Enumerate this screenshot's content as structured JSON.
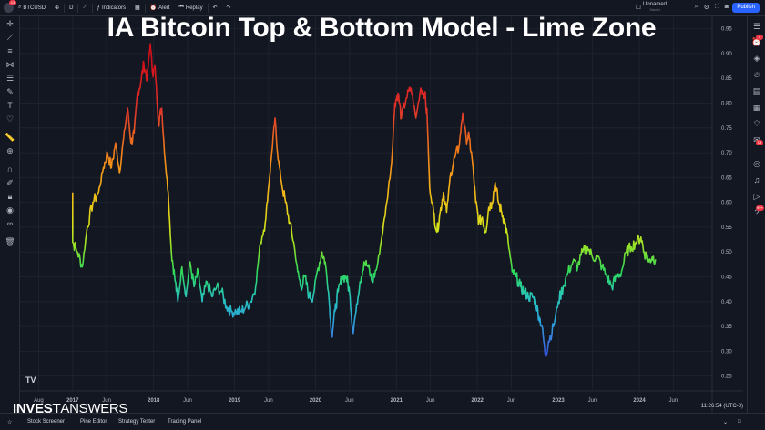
{
  "topbar": {
    "avatar_badge": "13",
    "symbol": "BTCUSD",
    "interval": "D",
    "indicators_label": "Indicators",
    "alert_label": "Alert",
    "replay_label": "Replay",
    "layout_name": "Unnamed",
    "layout_sub": "Saved",
    "publish_label": "Publish"
  },
  "right_toolbar": {
    "badge_1": "4",
    "badge_2": "13",
    "badge_3": "99+"
  },
  "title": "IA Bitcoin Top & Bottom Model - Lime Zone",
  "brand": {
    "bold": "INVEST",
    "light": "ANSWERS"
  },
  "clock": "11:26:54 (UTC-8)",
  "tv_logo": "TV",
  "bottom_tabs": [
    "Stock Screener",
    "Pine Editor",
    "Strategy Tester",
    "Trading Panel"
  ],
  "colors": {
    "background": "#131722",
    "grid": "#1e222d",
    "accent": "#2962ff",
    "badge": "#f23645"
  },
  "chart_data": {
    "type": "line",
    "x_ticks": [
      {
        "label": "Aug",
        "x": 2016.58
      },
      {
        "label": "2017",
        "x": 2017.0
      },
      {
        "label": "Jun",
        "x": 2017.42
      },
      {
        "label": "2018",
        "x": 2018.0
      },
      {
        "label": "Jun",
        "x": 2018.42
      },
      {
        "label": "2019",
        "x": 2019.0
      },
      {
        "label": "Jun",
        "x": 2019.42
      },
      {
        "label": "2020",
        "x": 2020.0
      },
      {
        "label": "Jun",
        "x": 2020.42
      },
      {
        "label": "2021",
        "x": 2021.0
      },
      {
        "label": "Jun",
        "x": 2021.42
      },
      {
        "label": "2022",
        "x": 2022.0
      },
      {
        "label": "Jun",
        "x": 2022.42
      },
      {
        "label": "2023",
        "x": 2023.0
      },
      {
        "label": "Jun",
        "x": 2023.42
      },
      {
        "label": "2024",
        "x": 2024.0
      },
      {
        "label": "Jun",
        "x": 2024.42
      }
    ],
    "y_ticks": [
      "0.95",
      "0.90",
      "0.85",
      "0.80",
      "0.75",
      "0.70",
      "0.65",
      "0.60",
      "0.55",
      "0.50",
      "0.45",
      "0.40",
      "0.35",
      "0.30",
      "0.25"
    ],
    "xlim": [
      2016.35,
      2024.9
    ],
    "ylim": [
      0.22,
      0.975
    ],
    "series": [
      {
        "points": [
          [
            2017.0,
            0.62
          ],
          [
            2017.0,
            0.52
          ],
          [
            2017.06,
            0.5
          ],
          [
            2017.12,
            0.47
          ],
          [
            2017.18,
            0.55
          ],
          [
            2017.25,
            0.6
          ],
          [
            2017.32,
            0.62
          ],
          [
            2017.38,
            0.67
          ],
          [
            2017.43,
            0.7
          ],
          [
            2017.48,
            0.67
          ],
          [
            2017.53,
            0.72
          ],
          [
            2017.58,
            0.66
          ],
          [
            2017.63,
            0.73
          ],
          [
            2017.68,
            0.79
          ],
          [
            2017.72,
            0.72
          ],
          [
            2017.76,
            0.74
          ],
          [
            2017.8,
            0.82
          ],
          [
            2017.84,
            0.84
          ],
          [
            2017.88,
            0.88
          ],
          [
            2017.92,
            0.85
          ],
          [
            2017.96,
            0.92
          ],
          [
            2017.99,
            0.86
          ],
          [
            2018.02,
            0.87
          ],
          [
            2018.06,
            0.76
          ],
          [
            2018.1,
            0.79
          ],
          [
            2018.14,
            0.69
          ],
          [
            2018.18,
            0.62
          ],
          [
            2018.22,
            0.5
          ],
          [
            2018.26,
            0.45
          ],
          [
            2018.3,
            0.4
          ],
          [
            2018.35,
            0.47
          ],
          [
            2018.4,
            0.41
          ],
          [
            2018.45,
            0.48
          ],
          [
            2018.5,
            0.43
          ],
          [
            2018.55,
            0.46
          ],
          [
            2018.6,
            0.4
          ],
          [
            2018.66,
            0.44
          ],
          [
            2018.72,
            0.41
          ],
          [
            2018.78,
            0.43
          ],
          [
            2018.84,
            0.42
          ],
          [
            2018.9,
            0.39
          ],
          [
            2018.96,
            0.38
          ],
          [
            2019.02,
            0.38
          ],
          [
            2019.08,
            0.38
          ],
          [
            2019.14,
            0.39
          ],
          [
            2019.2,
            0.4
          ],
          [
            2019.26,
            0.43
          ],
          [
            2019.32,
            0.52
          ],
          [
            2019.38,
            0.56
          ],
          [
            2019.42,
            0.63
          ],
          [
            2019.46,
            0.7
          ],
          [
            2019.5,
            0.77
          ],
          [
            2019.53,
            0.7
          ],
          [
            2019.58,
            0.64
          ],
          [
            2019.63,
            0.6
          ],
          [
            2019.68,
            0.56
          ],
          [
            2019.73,
            0.52
          ],
          [
            2019.78,
            0.46
          ],
          [
            2019.82,
            0.43
          ],
          [
            2019.87,
            0.45
          ],
          [
            2019.92,
            0.41
          ],
          [
            2019.97,
            0.41
          ],
          [
            2020.02,
            0.46
          ],
          [
            2020.08,
            0.5
          ],
          [
            2020.12,
            0.48
          ],
          [
            2020.16,
            0.42
          ],
          [
            2020.2,
            0.33
          ],
          [
            2020.24,
            0.38
          ],
          [
            2020.28,
            0.42
          ],
          [
            2020.33,
            0.45
          ],
          [
            2020.38,
            0.45
          ],
          [
            2020.42,
            0.42
          ],
          [
            2020.46,
            0.34
          ],
          [
            2020.5,
            0.38
          ],
          [
            2020.55,
            0.44
          ],
          [
            2020.6,
            0.48
          ],
          [
            2020.65,
            0.47
          ],
          [
            2020.7,
            0.44
          ],
          [
            2020.76,
            0.47
          ],
          [
            2020.82,
            0.53
          ],
          [
            2020.88,
            0.6
          ],
          [
            2020.94,
            0.68
          ],
          [
            2020.98,
            0.8
          ],
          [
            2021.02,
            0.82
          ],
          [
            2021.06,
            0.77
          ],
          [
            2021.12,
            0.81
          ],
          [
            2021.18,
            0.83
          ],
          [
            2021.24,
            0.77
          ],
          [
            2021.3,
            0.83
          ],
          [
            2021.35,
            0.82
          ],
          [
            2021.38,
            0.77
          ],
          [
            2021.41,
            0.63
          ],
          [
            2021.46,
            0.58
          ],
          [
            2021.5,
            0.54
          ],
          [
            2021.54,
            0.58
          ],
          [
            2021.58,
            0.62
          ],
          [
            2021.62,
            0.58
          ],
          [
            2021.67,
            0.66
          ],
          [
            2021.72,
            0.69
          ],
          [
            2021.77,
            0.71
          ],
          [
            2021.82,
            0.78
          ],
          [
            2021.86,
            0.73
          ],
          [
            2021.9,
            0.73
          ],
          [
            2021.94,
            0.68
          ],
          [
            2021.98,
            0.6
          ],
          [
            2022.02,
            0.56
          ],
          [
            2022.06,
            0.57
          ],
          [
            2022.1,
            0.54
          ],
          [
            2022.14,
            0.59
          ],
          [
            2022.18,
            0.6
          ],
          [
            2022.22,
            0.64
          ],
          [
            2022.26,
            0.6
          ],
          [
            2022.3,
            0.58
          ],
          [
            2022.34,
            0.56
          ],
          [
            2022.38,
            0.52
          ],
          [
            2022.43,
            0.46
          ],
          [
            2022.48,
            0.45
          ],
          [
            2022.53,
            0.43
          ],
          [
            2022.58,
            0.42
          ],
          [
            2022.63,
            0.41
          ],
          [
            2022.68,
            0.41
          ],
          [
            2022.72,
            0.4
          ],
          [
            2022.76,
            0.37
          ],
          [
            2022.8,
            0.35
          ],
          [
            2022.84,
            0.29
          ],
          [
            2022.88,
            0.32
          ],
          [
            2022.94,
            0.35
          ],
          [
            2023.0,
            0.4
          ],
          [
            2023.06,
            0.43
          ],
          [
            2023.12,
            0.46
          ],
          [
            2023.18,
            0.48
          ],
          [
            2023.24,
            0.47
          ],
          [
            2023.3,
            0.5
          ],
          [
            2023.36,
            0.51
          ],
          [
            2023.42,
            0.49
          ],
          [
            2023.48,
            0.49
          ],
          [
            2023.54,
            0.47
          ],
          [
            2023.6,
            0.45
          ],
          [
            2023.66,
            0.43
          ],
          [
            2023.72,
            0.45
          ],
          [
            2023.78,
            0.46
          ],
          [
            2023.84,
            0.5
          ],
          [
            2023.9,
            0.51
          ],
          [
            2023.96,
            0.52
          ],
          [
            2024.02,
            0.53
          ],
          [
            2024.06,
            0.5
          ],
          [
            2024.12,
            0.48
          ],
          [
            2024.16,
            0.49
          ],
          [
            2024.2,
            0.485
          ]
        ]
      }
    ]
  }
}
